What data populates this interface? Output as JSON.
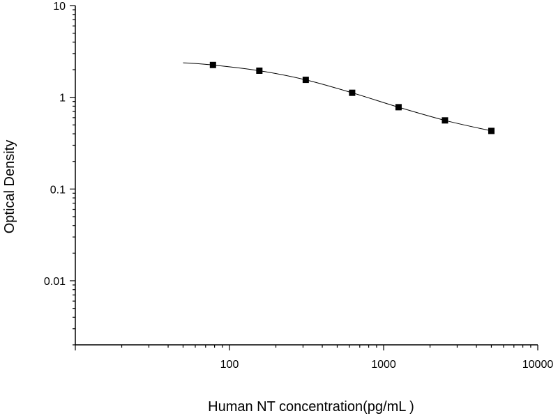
{
  "chart_data": {
    "type": "scatter",
    "xlabel": "Human NT concentration(pg/mL )",
    "ylabel": "Optical Density",
    "xscale": "log",
    "yscale": "log",
    "xlim": [
      10,
      10000
    ],
    "ylim": [
      0.002,
      10
    ],
    "x_ticks": [
      {
        "value": 100,
        "label": "100"
      },
      {
        "value": 1000,
        "label": "1000"
      },
      {
        "value": 10000,
        "label": "10000"
      }
    ],
    "y_ticks": [
      {
        "value": 10,
        "label": "10"
      },
      {
        "value": 1,
        "label": "1"
      },
      {
        "value": 0.1,
        "label": "0.1"
      },
      {
        "value": 0.01,
        "label": "0.01"
      }
    ],
    "grid": false,
    "legend": "none",
    "series": [
      {
        "marker": "square",
        "color": "#000000",
        "x": [
          78.125,
          156.25,
          312.5,
          625,
          1250,
          2500,
          5000
        ],
        "y": [
          2.25,
          1.95,
          1.55,
          1.12,
          0.78,
          0.56,
          0.43
        ]
      }
    ],
    "fit_curve": {
      "color": "#000000",
      "x": [
        50,
        78.125,
        156.25,
        312.5,
        625,
        1250,
        2500,
        5000
      ],
      "y": [
        2.38,
        2.25,
        1.95,
        1.55,
        1.12,
        0.78,
        0.56,
        0.43
      ]
    }
  }
}
